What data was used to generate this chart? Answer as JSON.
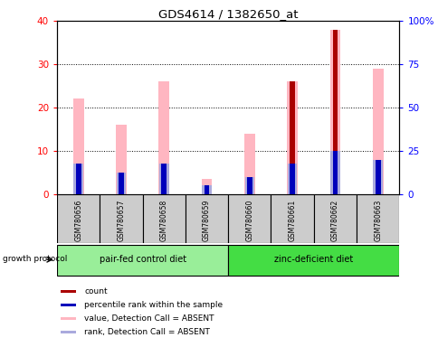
{
  "title": "GDS4614 / 1382650_at",
  "samples": [
    "GSM780656",
    "GSM780657",
    "GSM780658",
    "GSM780659",
    "GSM780660",
    "GSM780661",
    "GSM780662",
    "GSM780663"
  ],
  "count_values": [
    0,
    0,
    0,
    0,
    0,
    26,
    38,
    0
  ],
  "percentile_rank": [
    7,
    5,
    7,
    2,
    4,
    7,
    10,
    8
  ],
  "value_absent": [
    22,
    16,
    26,
    3.5,
    14,
    26,
    38,
    29
  ],
  "rank_absent": [
    7,
    5,
    7,
    2,
    4,
    7,
    10,
    8
  ],
  "count_color": "#AA0000",
  "rank_color": "#0000BB",
  "value_absent_color": "#FFB6C1",
  "rank_absent_color": "#AAAADD",
  "group1_label": "pair-fed control diet",
  "group2_label": "zinc-deficient diet",
  "group_protocol_label": "growth protocol",
  "ylim_left": [
    0,
    40
  ],
  "ylim_right": [
    0,
    100
  ],
  "yticks_left": [
    0,
    10,
    20,
    30,
    40
  ],
  "yticks_right": [
    0,
    25,
    50,
    75,
    100
  ],
  "ytick_labels_right": [
    "0",
    "25",
    "50",
    "75",
    "100%"
  ],
  "bg_color": "#CCCCCC",
  "group_bg1": "#99EE99",
  "group_bg2": "#44DD44"
}
